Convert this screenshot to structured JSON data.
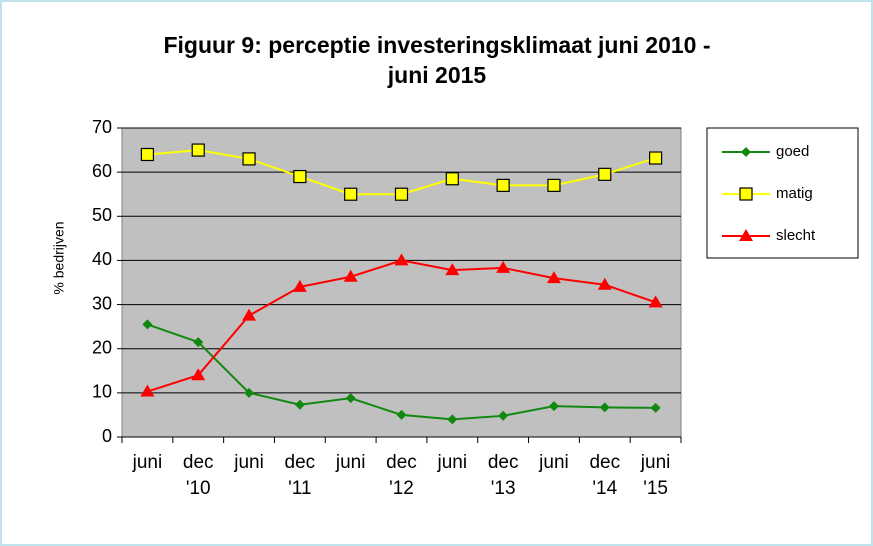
{
  "chart_data": {
    "type": "line",
    "title": [
      "Figuur 9: perceptie investeringsklimaat juni 2010 -",
      "juni 2015"
    ],
    "ylabel": "% bedrijven",
    "categories": [
      [
        "juni"
      ],
      [
        "dec",
        "'10"
      ],
      [
        "juni"
      ],
      [
        "dec",
        "'11"
      ],
      [
        "juni"
      ],
      [
        "dec",
        "'12"
      ],
      [
        "juni"
      ],
      [
        "dec",
        "'13"
      ],
      [
        "juni"
      ],
      [
        "dec",
        "'14"
      ],
      [
        "juni",
        "'15"
      ]
    ],
    "series": [
      {
        "name": "goed",
        "color": "#118811",
        "marker": "diamond",
        "values": [
          25.5,
          21.5,
          10,
          7.3,
          8.8,
          5,
          4,
          4.8,
          7,
          6.7,
          6.6
        ]
      },
      {
        "name": "matig",
        "color": "#ffff00",
        "marker": "square",
        "values": [
          64,
          65,
          63,
          59,
          55,
          55,
          58.5,
          57,
          57,
          59.5,
          63.2
        ]
      },
      {
        "name": "slecht",
        "color": "#ff0000",
        "marker": "triangle",
        "values": [
          10.3,
          14,
          27.5,
          34,
          36.3,
          40,
          37.8,
          38.3,
          36,
          34.5,
          30.5
        ]
      }
    ],
    "ylim": [
      0,
      70
    ],
    "yticks": [
      0,
      10,
      20,
      30,
      40,
      50,
      60,
      70
    ],
    "grid": true,
    "legend": "right"
  }
}
